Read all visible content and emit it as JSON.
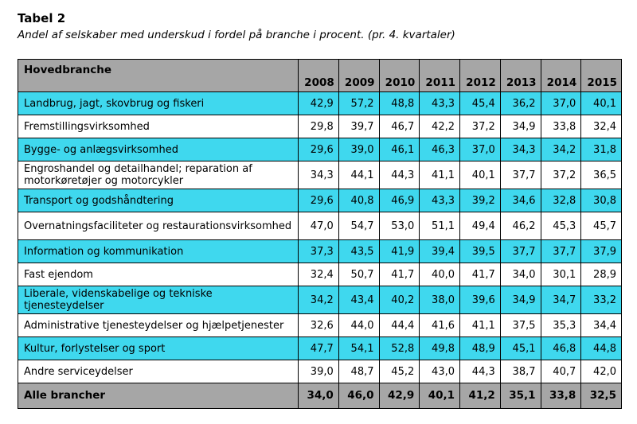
{
  "title": "Tabel 2",
  "subtitle": "Andel af selskaber med underskud i fordel på branche i procent. (pr. 4. kvartaler)",
  "header": {
    "label": "Hovedbranche",
    "years": [
      "2008",
      "2009",
      "2010",
      "2011",
      "2012",
      "2013",
      "2014",
      "2015"
    ]
  },
  "rows": [
    {
      "label": "Landbrug, jagt, skovbrug og fiskeri",
      "values": [
        "42,9",
        "57,2",
        "48,8",
        "43,3",
        "45,4",
        "36,2",
        "37,0",
        "40,1"
      ]
    },
    {
      "label": "Fremstillingsvirksomhed",
      "values": [
        "29,8",
        "39,7",
        "46,7",
        "42,2",
        "37,2",
        "34,9",
        "33,8",
        "32,4"
      ]
    },
    {
      "label": "Bygge- og anlægsvirksomhed",
      "values": [
        "29,6",
        "39,0",
        "46,1",
        "46,3",
        "37,0",
        "34,3",
        "34,2",
        "31,8"
      ]
    },
    {
      "label": "Engroshandel og detailhandel; reparation af motorkøretøjer og motorcykler",
      "values": [
        "34,3",
        "44,1",
        "44,3",
        "41,1",
        "40,1",
        "37,7",
        "37,2",
        "36,5"
      ]
    },
    {
      "label": "Transport og godshåndtering",
      "values": [
        "29,6",
        "40,8",
        "46,9",
        "43,3",
        "39,2",
        "34,6",
        "32,8",
        "30,8"
      ]
    },
    {
      "label": "Overnatningsfaciliteter og restaurationsvirksomhed",
      "values": [
        "47,0",
        "54,7",
        "53,0",
        "51,1",
        "49,4",
        "46,2",
        "45,3",
        "45,7"
      ]
    },
    {
      "label": "Information og kommunikation",
      "values": [
        "37,3",
        "43,5",
        "41,9",
        "39,4",
        "39,5",
        "37,7",
        "37,7",
        "37,9"
      ]
    },
    {
      "label": "Fast ejendom",
      "values": [
        "32,4",
        "50,7",
        "41,7",
        "40,0",
        "41,7",
        "34,0",
        "30,1",
        "28,9"
      ]
    },
    {
      "label": "Liberale, videnskabelige og tekniske tjenesteydelser",
      "values": [
        "34,2",
        "43,4",
        "40,2",
        "38,0",
        "39,6",
        "34,9",
        "34,7",
        "33,2"
      ]
    },
    {
      "label": "Administrative tjenesteydelser og hjælpetjenester",
      "values": [
        "32,6",
        "44,0",
        "44,4",
        "41,6",
        "41,1",
        "37,5",
        "35,3",
        "34,4"
      ]
    },
    {
      "label": "Kultur, forlystelser og sport",
      "values": [
        "47,7",
        "54,1",
        "52,8",
        "49,8",
        "48,9",
        "45,1",
        "46,8",
        "44,8"
      ]
    },
    {
      "label": "Andre serviceydelser",
      "values": [
        "39,0",
        "48,7",
        "45,2",
        "43,0",
        "44,3",
        "38,7",
        "40,7",
        "42,0"
      ]
    }
  ],
  "total": {
    "label": "Alle brancher",
    "values": [
      "34,0",
      "46,0",
      "42,9",
      "40,1",
      "41,2",
      "35,1",
      "33,8",
      "32,5"
    ]
  },
  "colors": {
    "highlight_row": "#3fd8ee",
    "header_bg": "#a6a6a6"
  }
}
